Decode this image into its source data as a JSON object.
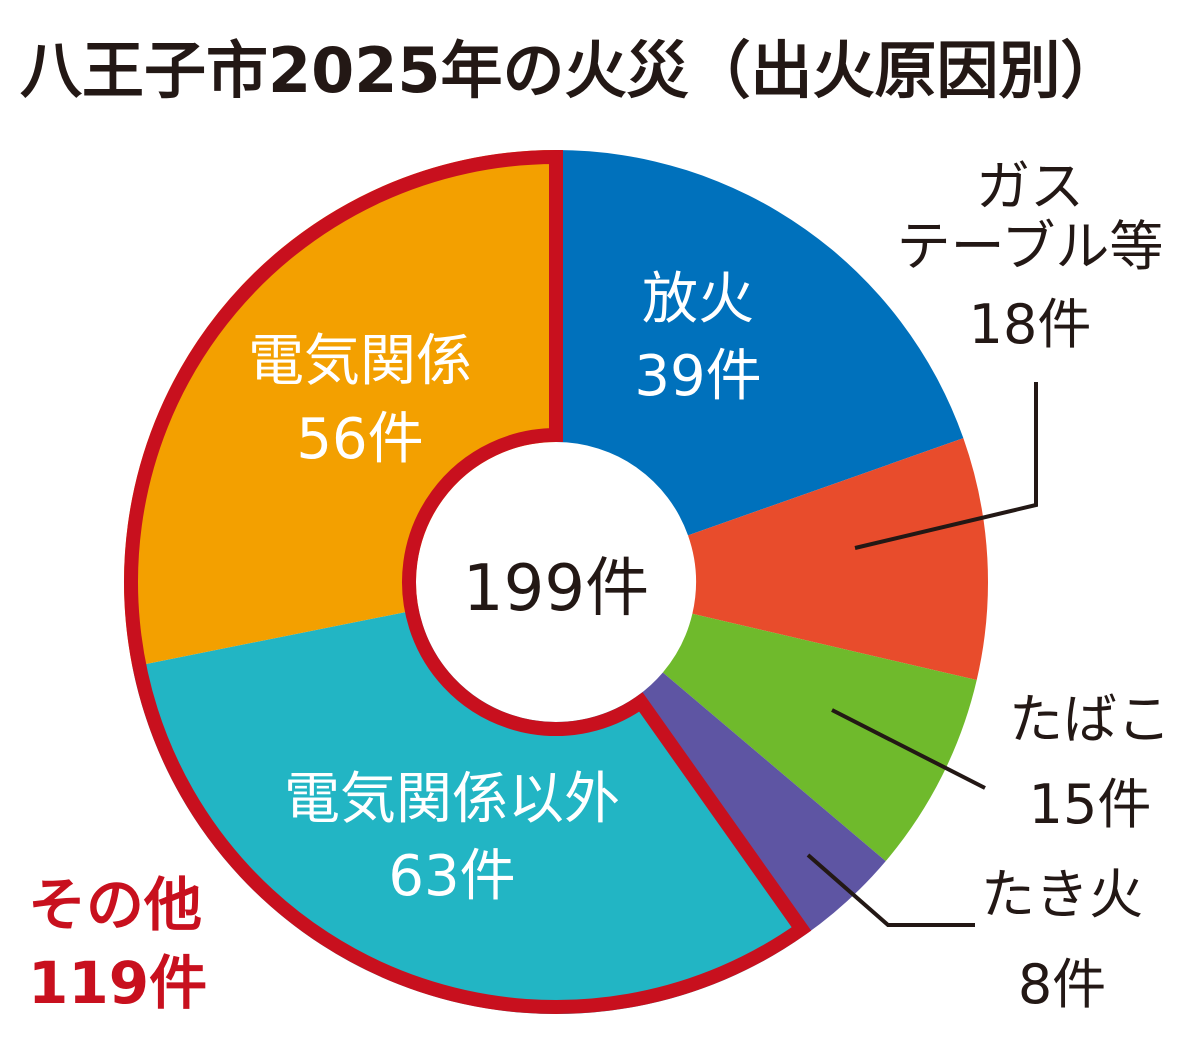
{
  "chart_data": {
    "type": "pie",
    "title": "八王子市2025年の火災（出火原因別）",
    "total_label": "199件",
    "slices": [
      {
        "name": "放火",
        "value": 39,
        "value_label": "39件",
        "color": "#0071bc",
        "placement": "inside"
      },
      {
        "name": "ガス\nテーブル等",
        "value": 18,
        "value_label": "18件",
        "color": "#e84c2c",
        "placement": "outside"
      },
      {
        "name": "たばこ",
        "value": 15,
        "value_label": "15件",
        "color": "#6fba2c",
        "placement": "outside"
      },
      {
        "name": "たき火",
        "value": 8,
        "value_label": "8件",
        "color": "#5e55a3",
        "placement": "outside"
      },
      {
        "name": "電気関係以外",
        "value": 63,
        "value_label": "63件",
        "color": "#22b5c4",
        "placement": "inside"
      },
      {
        "name": "電気関係",
        "value": 56,
        "value_label": "56件",
        "color": "#f3a000",
        "placement": "inside"
      }
    ],
    "group": {
      "name": "その他",
      "value": 119,
      "value_label": "119件",
      "members": [
        "電気関係以外",
        "電気関係"
      ],
      "outline_color": "#c8101e"
    },
    "start": "top (12 o'clock)",
    "direction": "clockwise"
  }
}
